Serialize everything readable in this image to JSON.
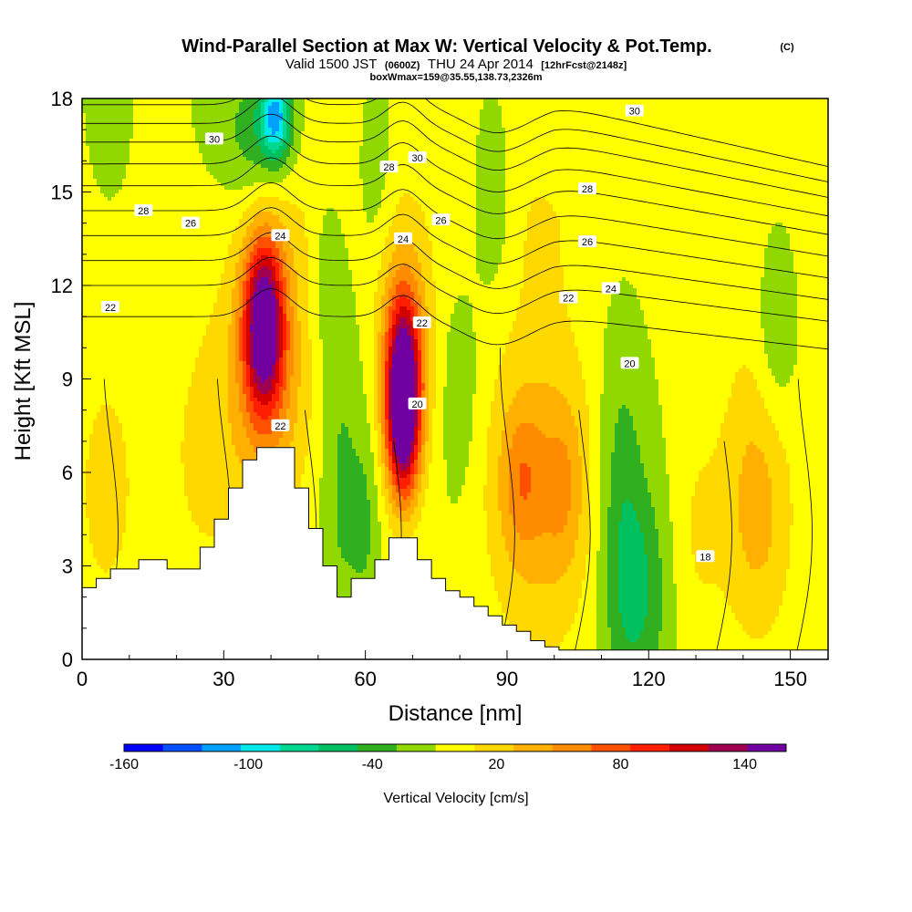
{
  "title": {
    "main": "Wind-Parallel Section at Max W: Vertical Velocity & Pot.Temp.",
    "copyright": "(C)",
    "valid_prefix": "Valid 1500 JST",
    "valid_utc": "(0600Z)",
    "valid_date": "THU 24 Apr 2014",
    "forecast": "[12hrFcst@2148z]",
    "box": "boxWmax=159@35.55,138.73,2326m"
  },
  "chart_data": {
    "type": "heatmap",
    "xlabel": "Distance [nm]",
    "ylabel": "Height [Kft MSL]",
    "xlim": [
      0,
      158
    ],
    "ylim": [
      0,
      18
    ],
    "x_ticks": [
      0,
      30,
      60,
      90,
      120,
      150
    ],
    "y_ticks": [
      0,
      3,
      6,
      9,
      12,
      15,
      18
    ],
    "background_velocity_cms": 0,
    "velocity_features": [
      {
        "x": 38.5,
        "y": 10.8,
        "sx": 3.0,
        "sy": 1.9,
        "w": 165
      },
      {
        "x": 39.5,
        "y": 8.6,
        "sx": 6.5,
        "sy": 3.0,
        "w": 55
      },
      {
        "x": 68,
        "y": 9.0,
        "sx": 2.6,
        "sy": 1.9,
        "w": 155
      },
      {
        "x": 68,
        "y": 7.0,
        "sx": 2.4,
        "sy": 1.6,
        "w": 90
      },
      {
        "x": 68.5,
        "y": 10.2,
        "sx": 4.5,
        "sy": 3.2,
        "w": 45
      },
      {
        "x": 97,
        "y": 5.5,
        "sx": 8.5,
        "sy": 3.8,
        "w": 52
      },
      {
        "x": 93,
        "y": 5.8,
        "sx": 3.0,
        "sy": 1.6,
        "w": 35
      },
      {
        "x": 102,
        "y": 5.6,
        "sx": 3.0,
        "sy": 1.8,
        "w": 25
      },
      {
        "x": 143,
        "y": 5.0,
        "sx": 5.5,
        "sy": 3.2,
        "w": 50
      },
      {
        "x": 5,
        "y": 5.5,
        "sx": 5.0,
        "sy": 3.2,
        "w": 28
      },
      {
        "x": 25,
        "y": 6.5,
        "sx": 7.0,
        "sy": 4.0,
        "w": 22
      },
      {
        "x": 130,
        "y": 4.0,
        "sx": 4.0,
        "sy": 3.0,
        "w": 20
      },
      {
        "x": 45,
        "y": 15.0,
        "sx": 10.0,
        "sy": 3.0,
        "w": 22
      },
      {
        "x": 95,
        "y": 14.5,
        "sx": 14.0,
        "sy": 2.5,
        "w": 18
      },
      {
        "x": 140,
        "y": 14.0,
        "sx": 12.0,
        "sy": 3.0,
        "w": 16
      },
      {
        "x": 41,
        "y": 17.4,
        "sx": 2.2,
        "sy": 0.9,
        "w": -95
      },
      {
        "x": 38,
        "y": 16.8,
        "sx": 6.0,
        "sy": 1.6,
        "w": -45
      },
      {
        "x": 118,
        "y": 2.2,
        "sx": 4.5,
        "sy": 2.5,
        "w": -40
      },
      {
        "x": 114,
        "y": 5.5,
        "sx": 3.5,
        "sy": 4.0,
        "w": -30
      },
      {
        "x": 87,
        "y": 14.5,
        "sx": 3.0,
        "sy": 2.0,
        "w": -30
      },
      {
        "x": 52,
        "y": 12.5,
        "sx": 2.5,
        "sy": 2.0,
        "w": -25
      },
      {
        "x": 55,
        "y": 6.0,
        "sx": 3.0,
        "sy": 4.0,
        "w": -25
      },
      {
        "x": 60,
        "y": 4.5,
        "sx": 2.0,
        "sy": 2.0,
        "w": -22
      },
      {
        "x": 147,
        "y": 11.0,
        "sx": 3.0,
        "sy": 2.5,
        "w": -30
      },
      {
        "x": 6,
        "y": 17.5,
        "sx": 1.5,
        "sy": 1.0,
        "w": -20
      },
      {
        "x": 80,
        "y": 8.5,
        "sx": 3.0,
        "sy": 2.5,
        "w": -18
      },
      {
        "x": 62,
        "y": 15.5,
        "sx": 2.5,
        "sy": 1.8,
        "w": -18
      }
    ],
    "terrain_steps": [
      [
        0,
        2.3
      ],
      [
        3,
        2.6
      ],
      [
        6,
        2.9
      ],
      [
        12,
        3.2
      ],
      [
        18,
        2.9
      ],
      [
        25,
        3.6
      ],
      [
        28,
        4.5
      ],
      [
        31,
        5.5
      ],
      [
        34,
        6.4
      ],
      [
        37,
        6.8
      ],
      [
        45,
        5.5
      ],
      [
        48,
        4.2
      ],
      [
        51,
        3.0
      ],
      [
        54,
        2.0
      ],
      [
        57,
        2.6
      ],
      [
        62,
        3.2
      ],
      [
        65,
        3.9
      ],
      [
        71,
        3.2
      ],
      [
        74,
        2.6
      ],
      [
        77,
        2.2
      ],
      [
        80,
        2.0
      ],
      [
        83,
        1.7
      ],
      [
        86,
        1.4
      ],
      [
        89,
        1.1
      ],
      [
        92,
        0.9
      ],
      [
        95,
        0.6
      ],
      [
        98,
        0.4
      ],
      [
        101,
        0.3
      ],
      [
        104,
        0.3
      ],
      [
        158,
        0.3
      ]
    ],
    "theta_contours": {
      "levels": [
        18,
        20,
        22,
        24,
        26,
        28,
        30
      ],
      "labels": [
        {
          "text": "30",
          "x": 28,
          "y": 16.7
        },
        {
          "text": "30",
          "x": 71,
          "y": 16.1
        },
        {
          "text": "30",
          "x": 117,
          "y": 17.6
        },
        {
          "text": "28",
          "x": 13,
          "y": 14.4
        },
        {
          "text": "28",
          "x": 65,
          "y": 15.8
        },
        {
          "text": "28",
          "x": 107,
          "y": 15.1
        },
        {
          "text": "26",
          "x": 23,
          "y": 14.0
        },
        {
          "text": "26",
          "x": 76,
          "y": 14.1
        },
        {
          "text": "26",
          "x": 107,
          "y": 13.4
        },
        {
          "text": "24",
          "x": 42,
          "y": 13.6
        },
        {
          "text": "24",
          "x": 68,
          "y": 13.5
        },
        {
          "text": "24",
          "x": 112,
          "y": 11.9
        },
        {
          "text": "22",
          "x": 6,
          "y": 11.3
        },
        {
          "text": "22",
          "x": 42,
          "y": 7.5
        },
        {
          "text": "22",
          "x": 72,
          "y": 10.8
        },
        {
          "text": "22",
          "x": 103,
          "y": 11.6
        },
        {
          "text": "20",
          "x": 71,
          "y": 8.2
        },
        {
          "text": "20",
          "x": 116,
          "y": 9.5
        },
        {
          "text": "18",
          "x": 132,
          "y": 3.3
        }
      ]
    }
  },
  "colorbar": {
    "title": "Vertical Velocity [cm/s]",
    "tick_labels": [
      "-160",
      "-100",
      "-40",
      "20",
      "80",
      "140"
    ],
    "boundaries": [
      -160,
      -140,
      -120,
      -100,
      -80,
      -60,
      -40,
      -20,
      0,
      20,
      40,
      60,
      80,
      100,
      120,
      140,
      160
    ],
    "colors": [
      "#0000ff",
      "#0050ff",
      "#00a0ff",
      "#00e8e8",
      "#00d890",
      "#00c060",
      "#30b020",
      "#90d800",
      "#ffff00",
      "#ffd800",
      "#ffb000",
      "#ff8c00",
      "#ff5000",
      "#ff1e00",
      "#d40000",
      "#a00050",
      "#7000a0"
    ]
  }
}
